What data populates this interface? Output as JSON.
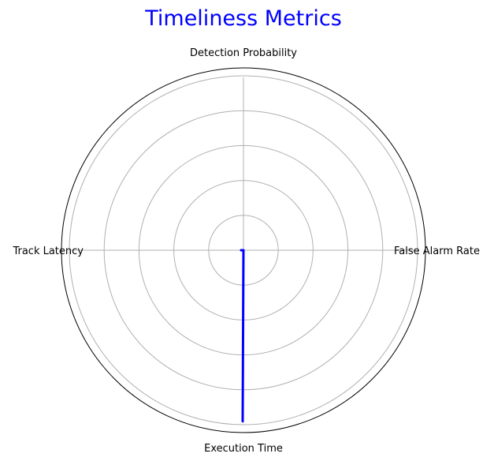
{
  "chart_data": {
    "type": "radar",
    "title": "Timeliness Metrics",
    "categories": [
      "Detection Probability",
      "False Alarm Rate",
      "Execution Time",
      "Track Latency"
    ],
    "series": [
      {
        "values": [
          0,
          0,
          0.98,
          0
        ],
        "color": "#0000ff"
      }
    ],
    "rlim": [
      0,
      1
    ],
    "radial_gridlines": [
      0.2,
      0.4,
      0.6,
      0.8,
      1.0
    ],
    "grid": true,
    "colors": {
      "grid": "#b0b0b0",
      "frame": "#000000",
      "title": "#0000ff",
      "series": "#0000ff"
    }
  }
}
